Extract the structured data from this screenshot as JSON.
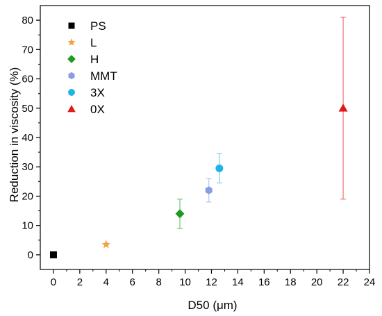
{
  "chart_data": {
    "type": "scatter",
    "xlabel": "D50 (μm)",
    "ylabel": "Reduction in viscosity (%)",
    "xlim": [
      -1,
      24
    ],
    "ylim": [
      -5,
      85
    ],
    "xticks": [
      0,
      2,
      4,
      6,
      8,
      10,
      12,
      14,
      16,
      18,
      20,
      22,
      24
    ],
    "yticks": [
      0,
      10,
      20,
      30,
      40,
      50,
      60,
      70,
      80
    ],
    "grid": false,
    "legend_position": "top-left",
    "series": [
      {
        "name": "PS",
        "marker": "square",
        "color": "#000000",
        "x": 0,
        "y": 0,
        "err": null
      },
      {
        "name": "L",
        "marker": "star",
        "color": "#f5a044",
        "x": 4,
        "y": 3.5,
        "err": null
      },
      {
        "name": "H",
        "marker": "diamond",
        "color": "#1e9a1e",
        "x": 9.6,
        "y": 14,
        "err": 5
      },
      {
        "name": "MMT",
        "marker": "hexagon",
        "color": "#8a9ce6",
        "x": 11.8,
        "y": 22,
        "err": 4
      },
      {
        "name": "3X",
        "marker": "circle",
        "color": "#1eb4ea",
        "x": 12.6,
        "y": 29.5,
        "err": 5
      },
      {
        "name": "0X",
        "marker": "triangle",
        "color": "#e01a1a",
        "x": 22,
        "y": 50,
        "err": 31
      }
    ]
  }
}
